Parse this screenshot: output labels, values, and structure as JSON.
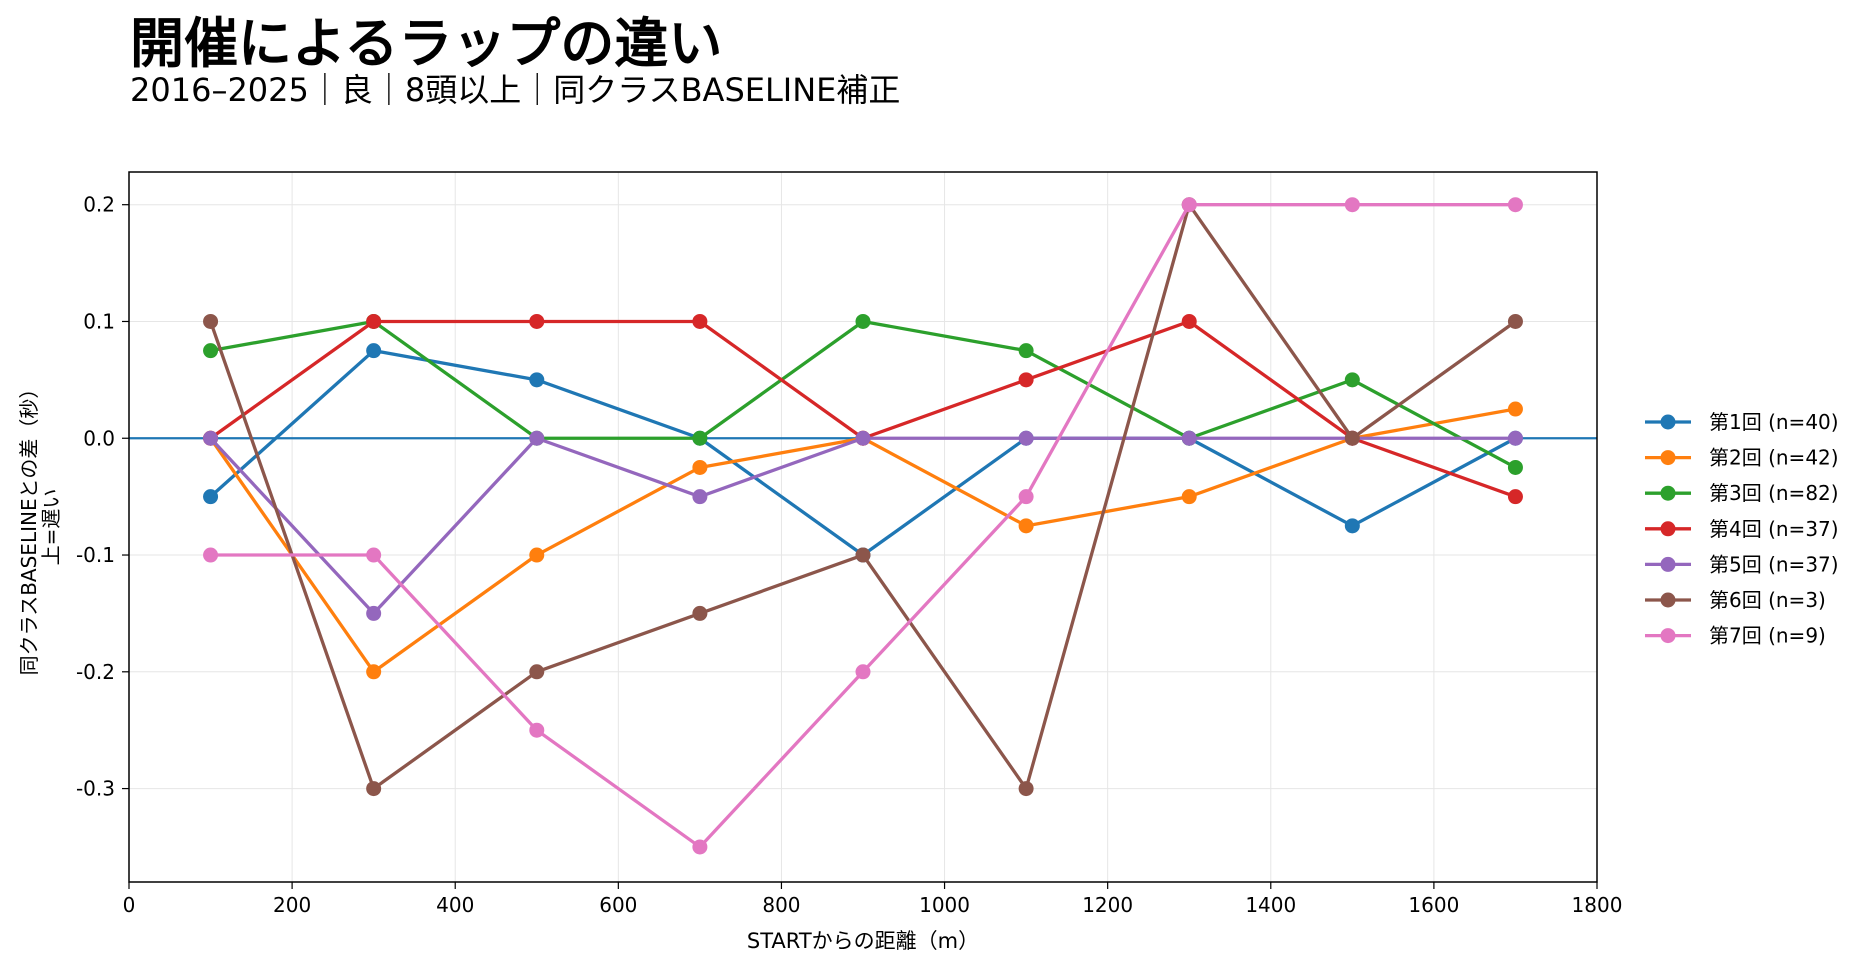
{
  "header": {
    "title": "開催によるラップの違い",
    "subtitle": "2016–2025｜良｜8頭以上｜同クラスBASELINE補正"
  },
  "chart_data": {
    "type": "line",
    "xlabel": "STARTからの距離（m）",
    "ylabel_line1": "同クラスBASELINEとの差（秒）",
    "ylabel_line2": "上=遅い",
    "xlim": [
      0,
      1800
    ],
    "ylim": [
      -0.38,
      0.228
    ],
    "xticks": [
      0,
      200,
      400,
      600,
      800,
      1000,
      1200,
      1400,
      1600,
      1800
    ],
    "yticks": [
      0.2,
      0.1,
      0.0,
      -0.1,
      -0.2,
      -0.3
    ],
    "ytick_labels": [
      "0.2",
      "0.1",
      "0.0",
      "-0.1",
      "-0.2",
      "-0.3"
    ],
    "grid": true,
    "reference_line": {
      "y": 0.0,
      "color": "#1f77b4"
    },
    "legend_position": "right",
    "x": [
      100,
      300,
      500,
      700,
      900,
      1100,
      1300,
      1500,
      1700
    ],
    "series": [
      {
        "name": "第1回 (n=40)",
        "color": "#1f77b4",
        "values": [
          -0.05,
          0.075,
          0.05,
          0.0,
          -0.1,
          0.0,
          0.0,
          -0.075,
          0.0
        ]
      },
      {
        "name": "第2回 (n=42)",
        "color": "#ff7f0e",
        "values": [
          0.0,
          -0.2,
          -0.1,
          -0.025,
          0.0,
          -0.075,
          -0.05,
          0.0,
          0.025
        ]
      },
      {
        "name": "第3回 (n=82)",
        "color": "#2ca02c",
        "values": [
          0.075,
          0.1,
          0.0,
          0.0,
          0.1,
          0.075,
          0.0,
          0.05,
          -0.025
        ]
      },
      {
        "name": "第4回 (n=37)",
        "color": "#d62728",
        "values": [
          0.0,
          0.1,
          0.1,
          0.1,
          0.0,
          0.05,
          0.1,
          0.0,
          -0.05
        ]
      },
      {
        "name": "第5回 (n=37)",
        "color": "#9467bd",
        "values": [
          0.0,
          -0.15,
          0.0,
          -0.05,
          0.0,
          0.0,
          0.0,
          0.0,
          0.0
        ]
      },
      {
        "name": "第6回 (n=3)",
        "color": "#8c564b",
        "values": [
          0.1,
          -0.3,
          -0.2,
          -0.15,
          -0.1,
          -0.3,
          0.2,
          0.0,
          0.1
        ]
      },
      {
        "name": "第7回 (n=9)",
        "color": "#e377c2",
        "values": [
          -0.1,
          -0.1,
          -0.25,
          -0.35,
          -0.2,
          -0.05,
          0.2,
          0.2,
          0.2
        ]
      }
    ]
  }
}
